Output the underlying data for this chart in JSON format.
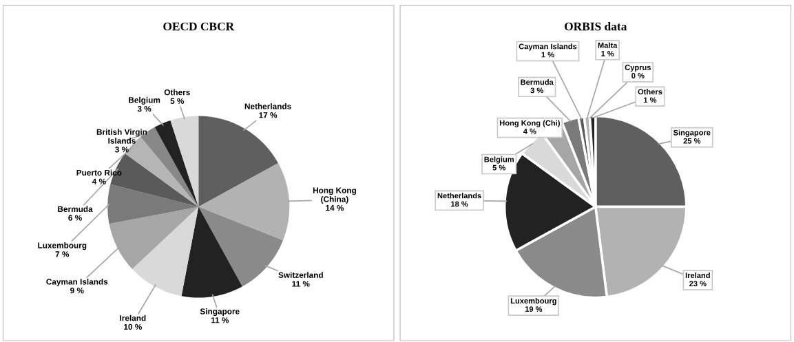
{
  "chart_data": [
    {
      "type": "pie",
      "title": "OECD CBCR",
      "categories": [
        "Netherlands",
        "Hong Kong (China)",
        "Switzerland",
        "Singapore",
        "Ireland",
        "Cayman Islands",
        "Luxembourg",
        "Bermuda",
        "Puerto Rico",
        "British Virgin Islands",
        "Belgium",
        "Others"
      ],
      "values": [
        17,
        14,
        11,
        11,
        10,
        9,
        7,
        6,
        4,
        3,
        3,
        5
      ],
      "value_labels": [
        "17 %",
        "14 %",
        "11 %",
        "11 %",
        "10 %",
        "9 %",
        "7 %",
        "6 %",
        "4 %",
        "3 %",
        "3 %",
        "5 %"
      ],
      "colors": [
        "#5f5f5f",
        "#b2b2b2",
        "#8a8a8a",
        "#222222",
        "#d9d9d9",
        "#a6a6a6",
        "#7a7a7a",
        "#5a5a5a",
        "#b5b5b5",
        "#888888",
        "#222222",
        "#d9d9d9"
      ],
      "legend": false
    },
    {
      "type": "pie",
      "title": "ORBIS data",
      "categories": [
        "Singapore",
        "Ireland",
        "Luxembourg",
        "Netherlands",
        "Belgium",
        "Hong Kong (Chi)",
        "Bermuda",
        "Cayman Islands",
        "Malta",
        "Cyprus",
        "Others"
      ],
      "values": [
        25,
        23,
        19,
        18,
        5,
        4,
        3,
        1,
        1,
        0,
        1
      ],
      "value_labels": [
        "25 %",
        "23 %",
        "19 %",
        "18 %",
        "5 %",
        "4 %",
        "3 %",
        "1 %",
        "1 %",
        "0 %",
        "1 %"
      ],
      "colors": [
        "#5f5f5f",
        "#b2b2b2",
        "#8a8a8a",
        "#222222",
        "#d9d9d9",
        "#a6a6a6",
        "#7a7a7a",
        "#5a5a5a",
        "#b5b5b5",
        "#888888",
        "#222222"
      ],
      "legend": false
    }
  ]
}
